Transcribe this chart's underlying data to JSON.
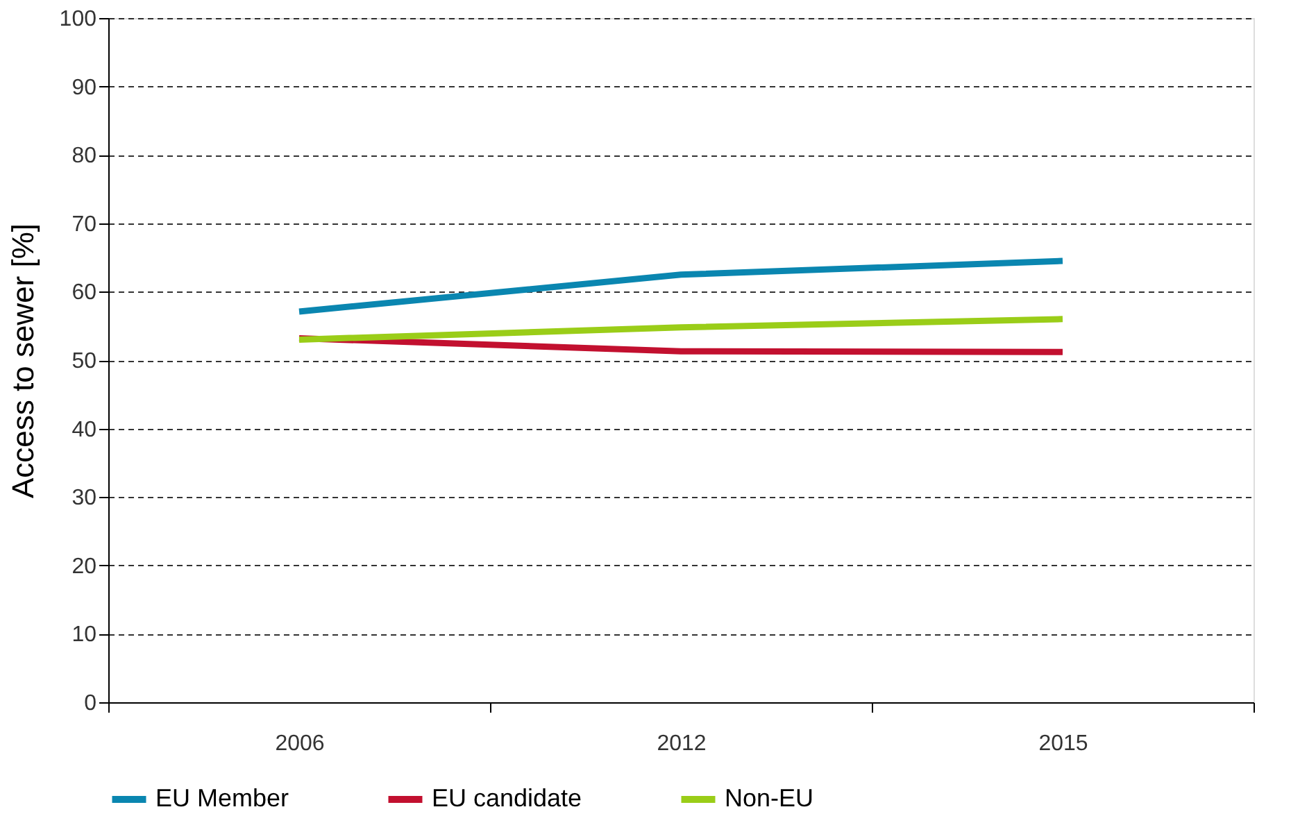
{
  "chart_data": {
    "type": "line",
    "ylabel": "Access to sewer [%]",
    "categories": [
      "2006",
      "2012",
      "2015"
    ],
    "series": [
      {
        "name": "EU Member",
        "color": "#0a86b0",
        "values": [
          57.1,
          62.5,
          64.5
        ]
      },
      {
        "name": "EU candidate",
        "color": "#c2102f",
        "values": [
          53.2,
          51.3,
          51.2
        ]
      },
      {
        "name": "Non-EU",
        "color": "#9acd18",
        "values": [
          53.0,
          54.8,
          56.0
        ]
      }
    ],
    "ylim": [
      0,
      100
    ],
    "yticks": [
      0,
      10,
      20,
      30,
      40,
      50,
      60,
      70,
      80,
      90,
      100
    ],
    "grid": "y",
    "legend": "bottom",
    "marker": "none",
    "line_style": "solid"
  }
}
